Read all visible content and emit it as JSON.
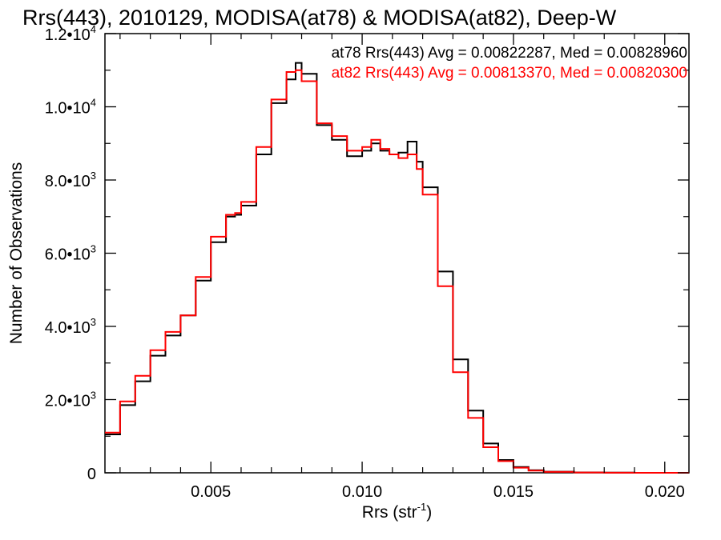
{
  "chart_data": {
    "type": "line",
    "title": "Rrs(443), 2010129, MODISA(at78) & MODISA(at82), Deep-W",
    "xlabel": "Rrs (str",
    "xlabel_sup": "-1",
    "xlabel_end": ")",
    "ylabel": "Number of Observations",
    "xlim": [
      0.0015,
      0.0208
    ],
    "ylim": [
      0,
      12000
    ],
    "x_ticks": [
      {
        "value": 0.005,
        "label": "0.005"
      },
      {
        "value": 0.01,
        "label": "0.010"
      },
      {
        "value": 0.015,
        "label": "0.015"
      },
      {
        "value": 0.02,
        "label": "0.020"
      }
    ],
    "y_ticks": [
      {
        "value": 0,
        "mant": "0",
        "exp": ""
      },
      {
        "value": 2000,
        "mant": "2.0•10",
        "exp": "3"
      },
      {
        "value": 4000,
        "mant": "4.0•10",
        "exp": "3"
      },
      {
        "value": 6000,
        "mant": "6.0•10",
        "exp": "3"
      },
      {
        "value": 8000,
        "mant": "8.0•10",
        "exp": "3"
      },
      {
        "value": 10000,
        "mant": "1.0•10",
        "exp": "4"
      },
      {
        "value": 12000,
        "mant": "1.2•10",
        "exp": "4"
      }
    ],
    "annotations": [
      {
        "text": "at78 Rrs(443) Avg = 0.00822287, Med = 0.00828960",
        "color": "#000000"
      },
      {
        "text": "at82 Rrs(443) Avg = 0.00813370, Med = 0.00820300",
        "color": "#ff0000"
      }
    ],
    "series": [
      {
        "color": "#000000",
        "x": [
          0.0015,
          0.002,
          0.0025,
          0.003,
          0.0035,
          0.004,
          0.0045,
          0.005,
          0.0055,
          0.0058,
          0.006,
          0.0065,
          0.007,
          0.0075,
          0.0078,
          0.008,
          0.0085,
          0.009,
          0.0095,
          0.01,
          0.0103,
          0.0106,
          0.0109,
          0.0112,
          0.0115,
          0.0118,
          0.012,
          0.0125,
          0.013,
          0.0135,
          0.014,
          0.0145,
          0.015,
          0.0155,
          0.016,
          0.017,
          0.018,
          0.019,
          0.0208
        ],
        "y": [
          1050,
          1850,
          2500,
          3200,
          3750,
          4300,
          5250,
          6300,
          7000,
          7050,
          7300,
          8700,
          10100,
          10750,
          11200,
          10900,
          9500,
          9100,
          8650,
          8800,
          9000,
          8800,
          8700,
          8750,
          9050,
          8500,
          7800,
          5500,
          3100,
          1700,
          800,
          350,
          160,
          70,
          30,
          10,
          5,
          0,
          0
        ]
      },
      {
        "color": "#ff0000",
        "x": [
          0.0015,
          0.002,
          0.0025,
          0.003,
          0.0035,
          0.004,
          0.0045,
          0.005,
          0.0055,
          0.0058,
          0.006,
          0.0065,
          0.007,
          0.0075,
          0.0078,
          0.008,
          0.0085,
          0.009,
          0.0095,
          0.01,
          0.0103,
          0.0106,
          0.0109,
          0.0112,
          0.0115,
          0.0118,
          0.012,
          0.0125,
          0.013,
          0.0135,
          0.014,
          0.0145,
          0.015,
          0.0155,
          0.016,
          0.017,
          0.018,
          0.019,
          0.0208
        ],
        "y": [
          1100,
          1950,
          2650,
          3350,
          3850,
          4300,
          5350,
          6450,
          7050,
          7100,
          7400,
          8900,
          10200,
          10950,
          11000,
          10700,
          9550,
          9200,
          8800,
          8900,
          9100,
          8850,
          8700,
          8600,
          8700,
          8300,
          7600,
          5100,
          2750,
          1500,
          700,
          320,
          140,
          60,
          25,
          8,
          3,
          0,
          0
        ]
      }
    ]
  }
}
